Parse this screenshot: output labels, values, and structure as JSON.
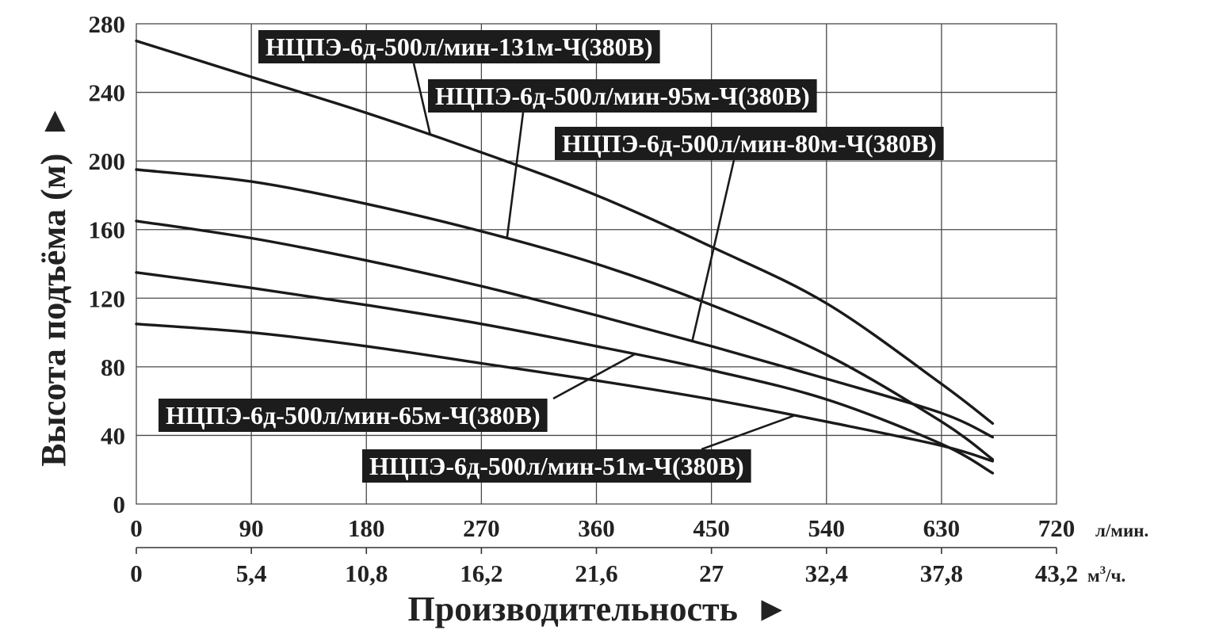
{
  "chart_data": {
    "type": "line",
    "title": "",
    "ylabel": "Высота подъёма (м)",
    "ylabel_arrow": "►",
    "xlabel": "Производительность",
    "xlabel_arrow": "►",
    "ylim": [
      0,
      280
    ],
    "xlim": [
      0,
      720
    ],
    "y_ticks": [
      "0",
      "40",
      "80",
      "120",
      "160",
      "200",
      "240",
      "280"
    ],
    "x_ticks_primary": [
      "0",
      "90",
      "180",
      "270",
      "360",
      "450",
      "540",
      "630",
      "720"
    ],
    "x_unit_primary": "л/мин.",
    "x_ticks_secondary": [
      "0",
      "5,4",
      "10,8",
      "16,2",
      "21,6",
      "27",
      "32,4",
      "37,8",
      "43,2"
    ],
    "x_unit_secondary_base": "м",
    "x_unit_secondary_sup": "3",
    "x_unit_secondary_tail": "/ч.",
    "grid": true,
    "series": [
      {
        "name": "НЦПЭ-6д-500л/мин-131м-Ч(380В)",
        "x": [
          0,
          90,
          180,
          270,
          360,
          450,
          540,
          630,
          670
        ],
        "values": [
          270,
          249,
          228,
          205,
          180,
          150,
          117,
          70,
          47
        ]
      },
      {
        "name": "НЦПЭ-6д-500л/мин-95м-Ч(380В)",
        "x": [
          0,
          90,
          180,
          270,
          360,
          450,
          540,
          630,
          670
        ],
        "values": [
          195,
          188,
          175,
          159,
          140,
          116,
          87,
          48,
          26
        ]
      },
      {
        "name": "НЦПЭ-6д-500л/мин-80м-Ч(380В)",
        "x": [
          0,
          90,
          180,
          270,
          360,
          450,
          540,
          630,
          670
        ],
        "values": [
          165,
          155,
          142,
          127,
          110,
          92,
          73,
          53,
          39
        ]
      },
      {
        "name": "НЦПЭ-6д-500л/мин-65м-Ч(380В)",
        "x": [
          0,
          90,
          180,
          270,
          360,
          450,
          540,
          630,
          670
        ],
        "values": [
          135,
          126,
          116,
          105,
          92,
          78,
          61,
          35,
          18
        ]
      },
      {
        "name": "НЦПЭ-6д-500л/мин-51м-Ч(380В)",
        "x": [
          0,
          90,
          180,
          270,
          360,
          450,
          540,
          630,
          670
        ],
        "values": [
          105,
          100,
          92,
          82,
          72,
          61,
          48,
          34,
          25
        ]
      }
    ]
  }
}
